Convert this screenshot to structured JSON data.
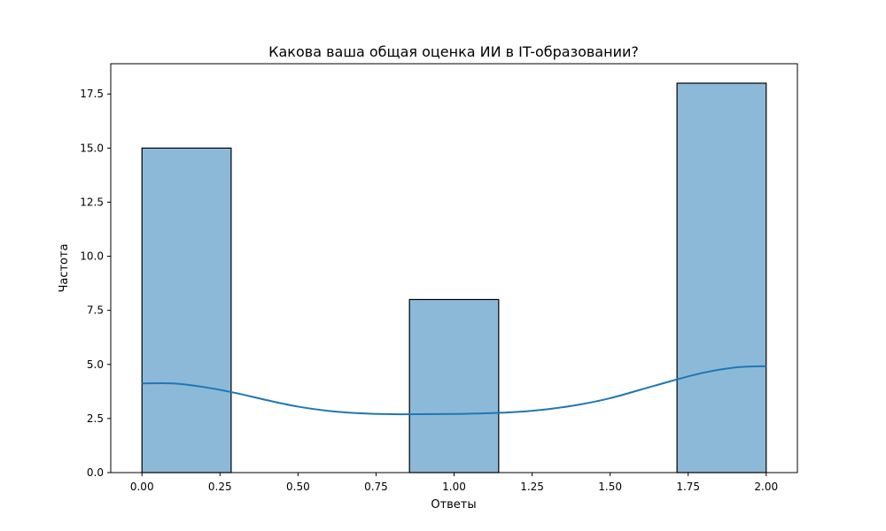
{
  "chart_data": {
    "type": "bar",
    "subtype": "histogram_with_kde",
    "title": "Какова ваша общая оценка ИИ в IT-образовании?",
    "xlabel": "Ответы",
    "ylabel": "Частота",
    "xlim": [
      -0.1,
      2.1
    ],
    "ylim": [
      0,
      18.9
    ],
    "x_ticks": [
      0.0,
      0.25,
      0.5,
      0.75,
      1.0,
      1.25,
      1.5,
      1.75,
      2.0
    ],
    "x_tick_labels": [
      "0.00",
      "0.25",
      "0.50",
      "0.75",
      "1.00",
      "1.25",
      "1.50",
      "1.75",
      "2.00"
    ],
    "y_ticks": [
      0,
      2.5,
      5,
      7.5,
      10,
      12.5,
      15,
      17.5
    ],
    "y_tick_labels": [
      "0.0",
      "2.5",
      "5.0",
      "7.5",
      "10.0",
      "12.5",
      "15.0",
      "17.5"
    ],
    "bins": [
      {
        "x0": 0.0,
        "x1": 0.2857,
        "count": 15
      },
      {
        "x0": 0.8571,
        "x1": 1.1429,
        "count": 8
      },
      {
        "x0": 1.7143,
        "x1": 2.0,
        "count": 18
      }
    ],
    "kde_curve": {
      "x": [
        0.0,
        0.1,
        0.2,
        0.3,
        0.4,
        0.5,
        0.6,
        0.7,
        0.8,
        0.9,
        1.0,
        1.1,
        1.2,
        1.3,
        1.4,
        1.5,
        1.6,
        1.7,
        1.8,
        1.9,
        2.0
      ],
      "y": [
        4.12,
        4.12,
        3.95,
        3.68,
        3.35,
        3.05,
        2.85,
        2.74,
        2.7,
        2.7,
        2.71,
        2.74,
        2.8,
        2.93,
        3.14,
        3.44,
        3.84,
        4.25,
        4.62,
        4.86,
        4.92
      ]
    },
    "grid": false,
    "legend": "none",
    "colors": {
      "bar_fill": "#8db9d9",
      "bar_edge": "#000000",
      "kde_line": "#1f77b4"
    }
  }
}
